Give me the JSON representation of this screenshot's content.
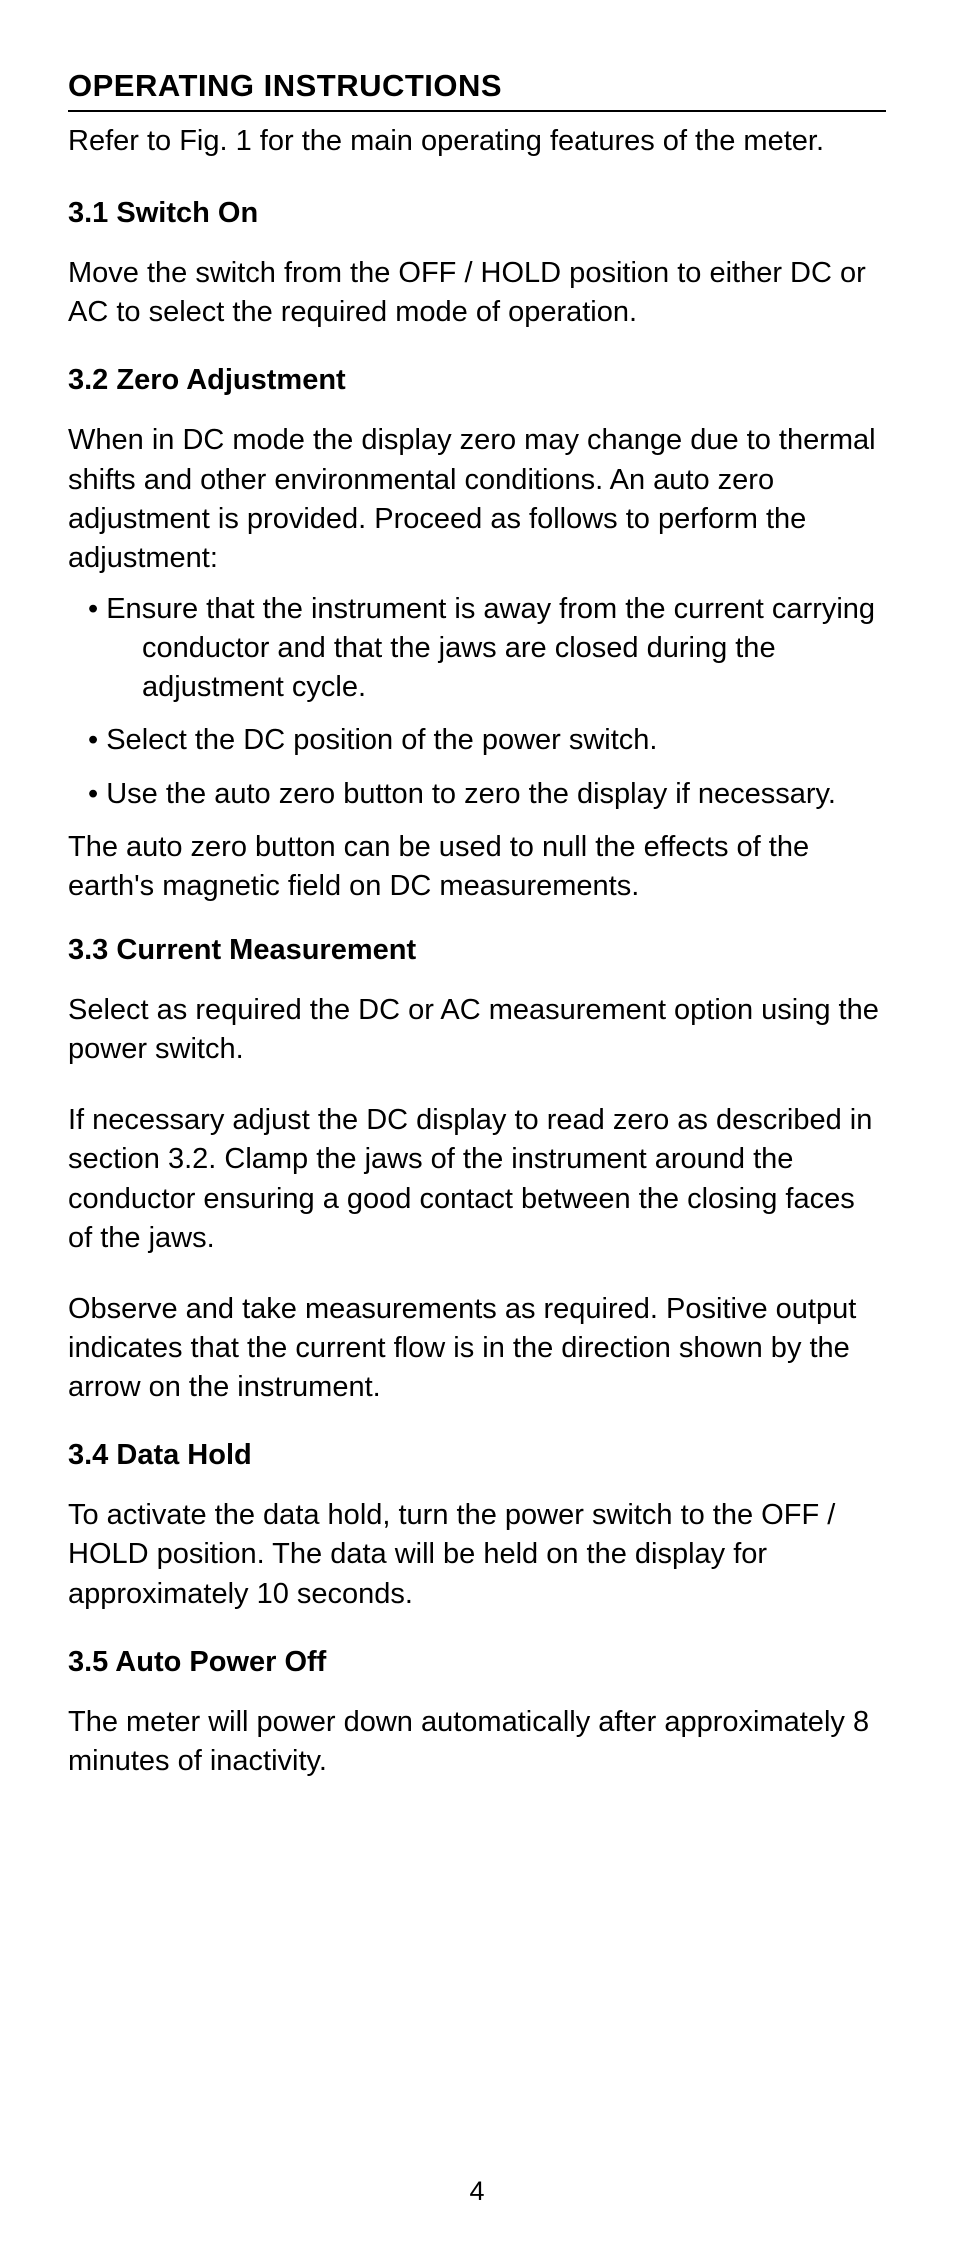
{
  "colors": {
    "background": "#ffffff",
    "text": "#000000",
    "rule": "#000000"
  },
  "typography": {
    "title_fontsize": 31,
    "heading_fontsize": 29,
    "body_fontsize": 29,
    "title_weight": "700",
    "heading_weight": "700",
    "body_weight": "400",
    "font_family": "Helvetica, Arial, sans-serif",
    "line_height": 1.35
  },
  "title": "OPERATING INSTRUCTIONS",
  "intro": "Refer to Fig. 1 for the main operating features of the meter.",
  "sections": [
    {
      "heading": "3.1 Switch On",
      "paragraphs": [
        "Move the switch from the OFF / HOLD position to either DC or AC to select the required mode of operation."
      ]
    },
    {
      "heading": "3.2 Zero Adjustment",
      "paragraphs_before": [
        "When in DC mode the display zero may change due to thermal shifts and other environmental conditions. An auto zero adjustment is provided. Proceed as follows to perform the adjustment:"
      ],
      "bullets": [
        "Ensure that the instrument is away from the current carrying conductor and that the jaws are closed during the adjustment cycle.",
        "Select the DC position of the power switch.",
        "Use the auto zero button to zero the display if necessary."
      ],
      "paragraphs_after": [
        "The auto zero button can be used to null the effects of the earth's magnetic field on DC measurements."
      ]
    },
    {
      "heading": "3.3 Current Measurement",
      "paragraphs": [
        "Select as required the DC or AC measurement option using the power switch.",
        "If necessary adjust the DC display to read zero as described in section 3.2. Clamp the jaws of the instrument around the conductor ensuring a good contact between the closing faces of the jaws.",
        "Observe and take measurements as required. Positive output indicates that the current flow is in the direction shown by the arrow on the instrument."
      ]
    },
    {
      "heading": "3.4 Data Hold",
      "paragraphs": [
        "To activate the data hold, turn the power switch to the OFF / HOLD position. The data will be held on the display for approximately 10 seconds."
      ]
    },
    {
      "heading": "3.5 Auto Power Off",
      "paragraphs": [
        "The meter will power down automatically after approximately 8 minutes of inactivity."
      ]
    }
  ],
  "page_number": "4"
}
